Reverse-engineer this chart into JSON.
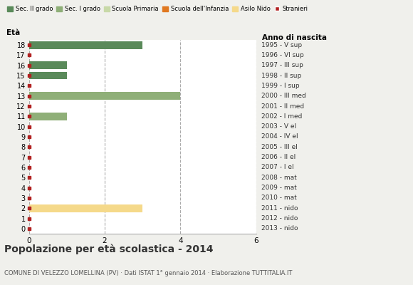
{
  "ages": [
    18,
    17,
    16,
    15,
    14,
    13,
    12,
    11,
    10,
    9,
    8,
    7,
    6,
    5,
    4,
    3,
    2,
    1,
    0
  ],
  "anni_nascita": [
    "1995 - V sup",
    "1996 - VI sup",
    "1997 - III sup",
    "1998 - II sup",
    "1999 - I sup",
    "2000 - III med",
    "2001 - II med",
    "2002 - I med",
    "2003 - V el",
    "2004 - IV el",
    "2005 - III el",
    "2006 - II el",
    "2007 - I el",
    "2008 - mat",
    "2009 - mat",
    "2010 - mat",
    "2011 - nido",
    "2012 - nido",
    "2013 - nido"
  ],
  "bar_data": {
    "sec2": {
      "ages": [
        18,
        16,
        15
      ],
      "values": [
        3,
        1,
        1
      ]
    },
    "sec1": {
      "ages": [
        13,
        11
      ],
      "values": [
        4,
        1
      ]
    },
    "primaria": {
      "ages": [],
      "values": []
    },
    "infanzia": {
      "ages": [],
      "values": []
    },
    "nido": {
      "ages": [
        2
      ],
      "values": [
        3
      ]
    }
  },
  "stranieri_ages": [
    18,
    17,
    16,
    15,
    14,
    13,
    12,
    11,
    10,
    9,
    8,
    7,
    6,
    5,
    4,
    3,
    2,
    1,
    0
  ],
  "colors": {
    "sec2": "#5a8a5a",
    "sec1": "#8faf78",
    "primaria": "#c8d9a8",
    "infanzia": "#e07820",
    "nido": "#f5d98a",
    "stranieri": "#b22222"
  },
  "title": "Popolazione per età scolastica - 2014",
  "subtitle": "COMUNE DI VELEZZO LOMELLINA (PV) · Dati ISTAT 1° gennaio 2014 · Elaborazione TUTTITALIA.IT",
  "xlabel_left": "Età",
  "xlabel_right": "Anno di nascita",
  "xlim": [
    0,
    6
  ],
  "ylim": [
    -0.5,
    18.5
  ],
  "xticks": [
    0,
    2,
    4,
    6
  ],
  "legend_labels": [
    "Sec. II grado",
    "Sec. I grado",
    "Scuola Primaria",
    "Scuola dell'Infanzia",
    "Asilo Nido",
    "Stranieri"
  ],
  "background_color": "#f0f0ec",
  "plot_bg_color": "#ffffff"
}
